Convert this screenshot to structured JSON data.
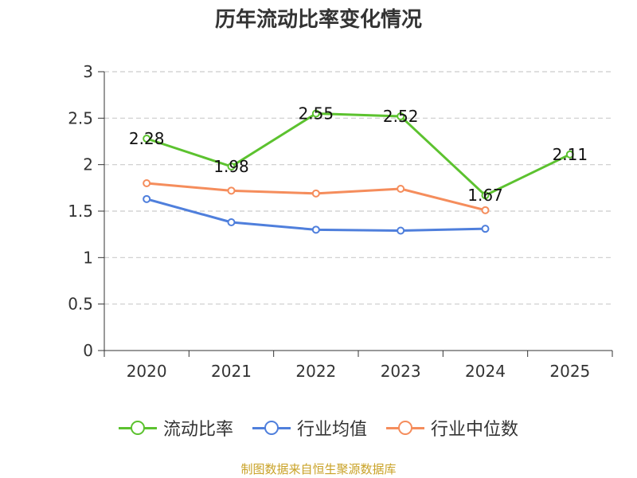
{
  "colors": {
    "current_ratio": "#5cc22f",
    "industry_average": "#4f7fdc",
    "industry_median": "#f58d5c",
    "grid": "#cccccc",
    "axis": "#333333",
    "source_text": "#c9a227"
  },
  "source": "制图数据来自恒生聚源数据库",
  "chart_data": {
    "type": "line",
    "title": "历年流动比率变化情况",
    "xlabel": "",
    "ylabel": "",
    "categories": [
      "2020",
      "2021",
      "2022",
      "2023",
      "2024",
      "2025"
    ],
    "ylim": [
      0,
      3
    ],
    "yticks": [
      "0",
      "0.5",
      "1",
      "1.5",
      "2",
      "2.5",
      "3"
    ],
    "grid": true,
    "legend_position": "bottom",
    "series": [
      {
        "key": "current_ratio",
        "name": "流动比率",
        "values": [
          2.28,
          1.98,
          2.55,
          2.52,
          1.67,
          2.11
        ],
        "labels": [
          "2.28",
          "1.98",
          "2.55",
          "2.52",
          "1.67",
          "2.11"
        ],
        "show_labels": true
      },
      {
        "key": "industry_average",
        "name": "行业均值",
        "values": [
          1.63,
          1.38,
          1.3,
          1.29,
          1.31,
          null
        ],
        "show_labels": false
      },
      {
        "key": "industry_median",
        "name": "行业中位数",
        "values": [
          1.8,
          1.72,
          1.69,
          1.74,
          1.51,
          null
        ],
        "show_labels": false
      }
    ]
  }
}
